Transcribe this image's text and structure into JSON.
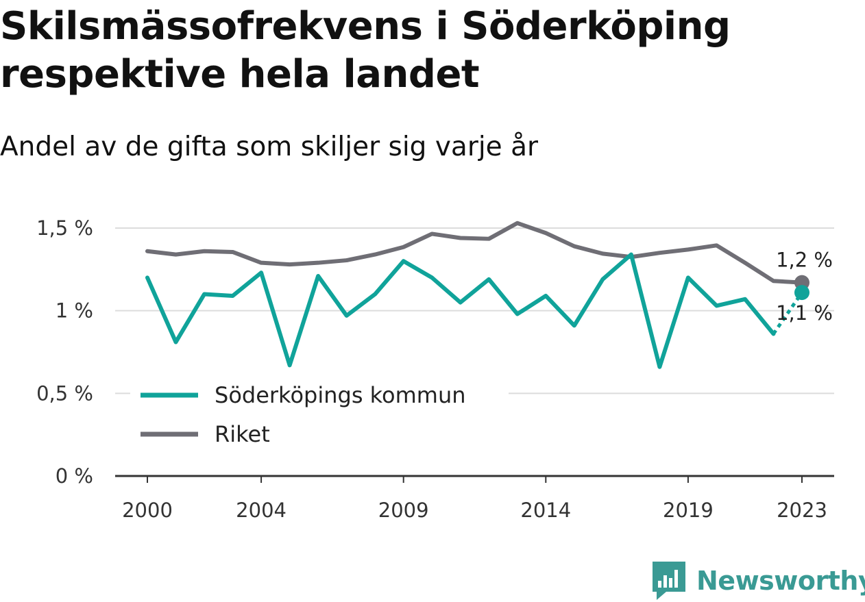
{
  "title": "Skilsmässofrekvens i Söderköping respektive hela landet",
  "subtitle": "Andel av de gifta som skiljer sig varje år",
  "brand": {
    "name": "Newsworthy",
    "color": "#3a9a94",
    "icon": "bar-chart-speech-bubble-icon"
  },
  "chart_data": {
    "type": "line",
    "xlim": [
      1999,
      2024.2
    ],
    "ylim": [
      0,
      1.5
    ],
    "x_ticks": [
      2000,
      2004,
      2009,
      2014,
      2019,
      2023
    ],
    "y_ticks": [
      {
        "value": 0,
        "label": "0 %"
      },
      {
        "value": 0.5,
        "label": "0,5 %"
      },
      {
        "value": 1,
        "label": "1 %"
      },
      {
        "value": 1.5,
        "label": "1,5 %"
      }
    ],
    "grid": true,
    "legend_position": "lower-left",
    "x": [
      2000,
      2001,
      2002,
      2003,
      2004,
      2005,
      2006,
      2007,
      2008,
      2009,
      2010,
      2011,
      2012,
      2013,
      2014,
      2015,
      2016,
      2017,
      2018,
      2019,
      2020,
      2021,
      2022,
      2023
    ],
    "series": [
      {
        "name": "Söderköpings kommun",
        "color": "#10a39a",
        "values": [
          1.2,
          0.81,
          1.1,
          1.09,
          1.23,
          0.67,
          1.21,
          0.97,
          1.1,
          1.3,
          1.2,
          1.05,
          1.19,
          0.98,
          1.09,
          0.91,
          1.19,
          1.34,
          0.66,
          1.2,
          1.03,
          1.07,
          0.86,
          1.11
        ],
        "dashed_last_segment": true,
        "end_label": "1,1 %"
      },
      {
        "name": "Riket",
        "color": "#6f6e75",
        "values": [
          1.36,
          1.34,
          1.36,
          1.355,
          1.29,
          1.28,
          1.29,
          1.305,
          1.34,
          1.385,
          1.465,
          1.44,
          1.435,
          1.53,
          1.47,
          1.39,
          1.345,
          1.325,
          1.35,
          1.37,
          1.395,
          1.29,
          1.18,
          1.17
        ],
        "end_label": "1,2 %"
      }
    ]
  }
}
